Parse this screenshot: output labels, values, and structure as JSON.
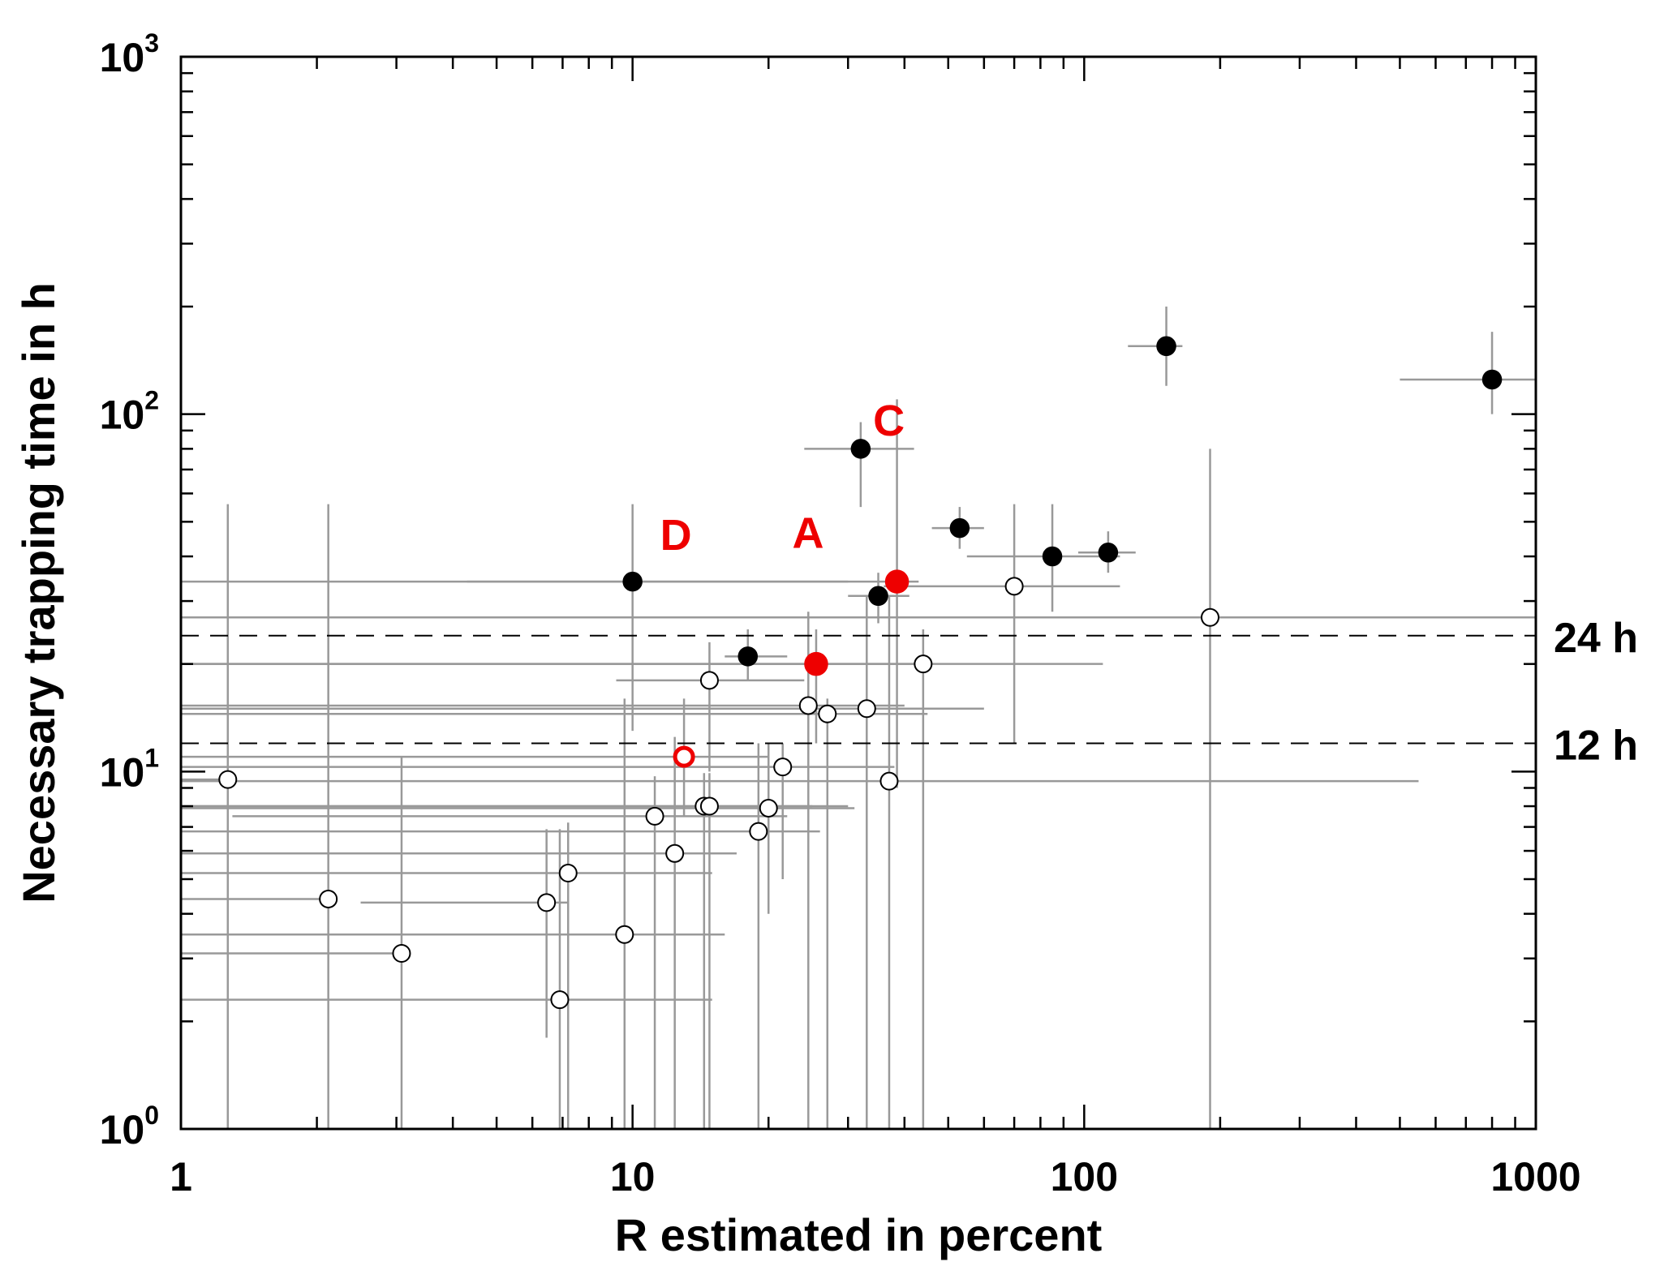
{
  "chart_data": {
    "type": "scatter",
    "xlabel": "R estimated in percent",
    "ylabel": "Necessary trapping time in h",
    "x_scale": "log",
    "y_scale": "log",
    "xlim": [
      1,
      1000
    ],
    "ylim": [
      1,
      1000
    ],
    "x_tick_labels": [
      "1",
      "10",
      "100",
      "1000"
    ],
    "y_tick_labels": [
      {
        "base": "10",
        "exp": "0"
      },
      {
        "base": "10",
        "exp": "1"
      },
      {
        "base": "10",
        "exp": "2"
      },
      {
        "base": "10",
        "exp": "3"
      }
    ],
    "reference_lines": [
      {
        "y": 24,
        "label": "24 h"
      },
      {
        "y": 12,
        "label": "12 h"
      }
    ],
    "colors": {
      "filled": "#000000",
      "open": "#ffffff",
      "highlight": "#ee0000",
      "error_bar": "#999999",
      "axis": "#000000"
    },
    "series": [
      {
        "marker": "filled",
        "points": [
          {
            "x": 10,
            "y": 34,
            "xerr": [
              4.3,
              30
            ],
            "yerr": [
              13,
              56
            ]
          },
          {
            "x": 18,
            "y": 21,
            "xerr": [
              16,
              22
            ],
            "yerr": [
              18,
              25
            ]
          },
          {
            "x": 32,
            "y": 80,
            "xerr": [
              24,
              42
            ],
            "yerr": [
              55,
              95
            ]
          },
          {
            "x": 35,
            "y": 31,
            "xerr": [
              30,
              41
            ],
            "yerr": [
              26,
              36
            ]
          },
          {
            "x": 53,
            "y": 48,
            "xerr": [
              46,
              60
            ],
            "yerr": [
              42,
              55
            ]
          },
          {
            "x": 85,
            "y": 40,
            "xerr": [
              55,
              120
            ],
            "yerr": [
              28,
              56
            ]
          },
          {
            "x": 113,
            "y": 41,
            "xerr": [
              97,
              130
            ],
            "yerr": [
              36,
              47
            ]
          },
          {
            "x": 152,
            "y": 155,
            "xerr": [
              125,
              165
            ],
            "yerr": [
              120,
              200
            ]
          },
          {
            "x": 800,
            "y": 125,
            "xerr": [
              500,
              1000
            ],
            "yerr": [
              100,
              170
            ]
          }
        ]
      },
      {
        "marker": "open",
        "points": [
          {
            "x": 1.27,
            "y": 9.5,
            "xerr": [
              1,
              1.27
            ],
            "yerr": [
              1,
              56
            ]
          },
          {
            "x": 2.12,
            "y": 4.4,
            "xerr": [
              1,
              2.12
            ],
            "yerr": [
              1,
              56
            ]
          },
          {
            "x": 3.08,
            "y": 3.1,
            "xerr": [
              1,
              3.08
            ],
            "yerr": [
              1,
              11
            ]
          },
          {
            "x": 6.45,
            "y": 4.3,
            "xerr": [
              2.5,
              7.2
            ],
            "yerr": [
              1.8,
              6.9
            ]
          },
          {
            "x": 6.9,
            "y": 2.3,
            "xerr": [
              1,
              15
            ],
            "yerr": [
              1,
              6.9
            ]
          },
          {
            "x": 7.2,
            "y": 5.2,
            "xerr": [
              1,
              15
            ],
            "yerr": [
              1,
              7.2
            ]
          },
          {
            "x": 9.6,
            "y": 3.5,
            "xerr": [
              1,
              16
            ],
            "yerr": [
              1,
              16
            ]
          },
          {
            "x": 11.2,
            "y": 7.5,
            "xerr": [
              1.3,
              22
            ],
            "yerr": [
              1,
              9.7
            ]
          },
          {
            "x": 12.4,
            "y": 5.9,
            "xerr": [
              1,
              17
            ],
            "yerr": [
              1,
              12.5
            ]
          },
          {
            "x": 14.4,
            "y": 8.0,
            "xerr": [
              1,
              25
            ],
            "yerr": [
              1,
              9.9
            ]
          },
          {
            "x": 14.8,
            "y": 8.0,
            "xerr": [
              1,
              30
            ],
            "yerr": [
              1,
              9.9
            ]
          },
          {
            "x": 14.8,
            "y": 18.0,
            "xerr": [
              9.2,
              24
            ],
            "yerr": [
              10,
              23
            ]
          },
          {
            "x": 19.0,
            "y": 6.8,
            "xerr": [
              1,
              26
            ],
            "yerr": [
              1,
              12
            ]
          },
          {
            "x": 20.0,
            "y": 7.9,
            "xerr": [
              1,
              31
            ],
            "yerr": [
              4,
              12
            ]
          },
          {
            "x": 21.5,
            "y": 10.3,
            "xerr": [
              1,
              38
            ],
            "yerr": [
              5,
              12
            ]
          },
          {
            "x": 24.5,
            "y": 15.3,
            "xerr": [
              1,
              40
            ],
            "yerr": [
              1,
              28
            ]
          },
          {
            "x": 27.0,
            "y": 14.5,
            "xerr": [
              1,
              45
            ],
            "yerr": [
              1,
              16
            ]
          },
          {
            "x": 33.0,
            "y": 15.0,
            "xerr": [
              1,
              60
            ],
            "yerr": [
              1,
              31
            ]
          },
          {
            "x": 37.0,
            "y": 9.4,
            "xerr": [
              1,
              550
            ],
            "yerr": [
              1,
              31
            ]
          },
          {
            "x": 44.0,
            "y": 20.0,
            "xerr": [
              1,
              110
            ],
            "yerr": [
              1,
              25
            ]
          },
          {
            "x": 70.0,
            "y": 33.0,
            "xerr": [
              36,
              120
            ],
            "yerr": [
              12,
              56
            ]
          },
          {
            "x": 190.0,
            "y": 27.0,
            "xerr": [
              1,
              1000
            ],
            "yerr": [
              1,
              80
            ]
          }
        ]
      },
      {
        "marker": "highlight-filled",
        "points": [
          {
            "x": 25.5,
            "y": 20.0,
            "label": "A",
            "xerr": [
              1,
              45
            ],
            "yerr": [
              12,
              25
            ]
          },
          {
            "x": 38.5,
            "y": 34.0,
            "label": "C",
            "xerr": [
              1,
              43
            ],
            "yerr": [
              9,
              110
            ]
          }
        ]
      },
      {
        "marker": "highlight-open",
        "points": [
          {
            "x": 13.0,
            "y": 11.0,
            "label": "D",
            "xerr": [
              1,
              20
            ],
            "yerr": [
              7.5,
              16
            ]
          }
        ]
      }
    ]
  }
}
